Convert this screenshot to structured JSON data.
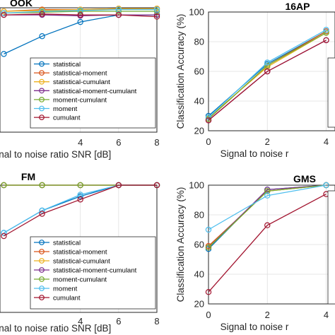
{
  "chart_data": [
    {
      "id": "ook",
      "type": "line",
      "title": "OOK",
      "xlabel": "Signal to noise ratio SNR [dB]",
      "ylabel": "",
      "x": [
        0,
        2,
        4,
        6,
        8
      ],
      "xticks": [
        4,
        6,
        8
      ],
      "xlim": [
        -0.2,
        8
      ],
      "ylim": [
        30,
        100
      ],
      "yticks": [],
      "grid": true,
      "legend_position": "bottom-right",
      "series": [
        {
          "name": "statistical",
          "color": "#0072BD",
          "values": [
            74,
            84,
            92,
            96,
            96
          ]
        },
        {
          "name": "statistical-moment",
          "color": "#D95319",
          "values": [
            98,
            99,
            99,
            99.5,
            99.5
          ]
        },
        {
          "name": "statistical-cumulant",
          "color": "#EDB120",
          "values": [
            98,
            98.5,
            99,
            99.5,
            99.5
          ]
        },
        {
          "name": "statistical-moment-cumulant",
          "color": "#7E2F8E",
          "values": [
            96,
            96,
            95.5,
            96,
            96
          ]
        },
        {
          "name": "moment-cumulant",
          "color": "#77AC30",
          "values": [
            97,
            97.5,
            98,
            98,
            98
          ]
        },
        {
          "name": "moment",
          "color": "#4DBEEE",
          "values": [
            97,
            98,
            98.5,
            99,
            99
          ]
        },
        {
          "name": "cumulant",
          "color": "#A2142F",
          "values": [
            96,
            96.5,
            96,
            96,
            95
          ]
        }
      ]
    },
    {
      "id": "apsk16",
      "type": "line",
      "title": "16AP",
      "xlabel": "Signal to noise r",
      "ylabel": "Classification Accuracy (%)",
      "x": [
        0,
        2,
        4
      ],
      "xticks": [
        0,
        2,
        4
      ],
      "xlim": [
        0,
        4.3
      ],
      "ylim": [
        20,
        100
      ],
      "yticks": [
        20,
        40,
        60,
        80,
        100
      ],
      "grid": true,
      "legend_position": "right",
      "series": [
        {
          "name": "statistical",
          "color": "#0072BD",
          "values": [
            30,
            65,
            87
          ]
        },
        {
          "name": "statistical-moment",
          "color": "#D95319",
          "values": [
            28,
            64,
            87
          ]
        },
        {
          "name": "statistical-cumulant",
          "color": "#EDB120",
          "values": [
            29,
            63,
            86
          ]
        },
        {
          "name": "statistical-moment-cumulant",
          "color": "#7E2F8E",
          "values": [
            27,
            60,
            81
          ]
        },
        {
          "name": "moment-cumulant",
          "color": "#77AC30",
          "values": [
            28,
            64,
            86
          ]
        },
        {
          "name": "moment",
          "color": "#4DBEEE",
          "values": [
            29,
            66,
            88
          ]
        },
        {
          "name": "cumulant",
          "color": "#A2142F",
          "values": [
            27,
            60,
            81
          ]
        }
      ]
    },
    {
      "id": "fm",
      "type": "line",
      "title": "FM",
      "xlabel": "Signal to noise ratio SNR [dB]",
      "ylabel": "",
      "x": [
        0,
        2,
        4,
        6,
        8
      ],
      "xticks": [
        4,
        6,
        8
      ],
      "xlim": [
        -0.2,
        8
      ],
      "ylim": [
        20,
        100
      ],
      "yticks": [],
      "grid": true,
      "legend_position": "bottom-right",
      "series": [
        {
          "name": "statistical",
          "color": "#0072BD",
          "values": [
            70,
            84,
            93,
            100,
            100
          ]
        },
        {
          "name": "statistical-moment",
          "color": "#D95319",
          "values": [
            100,
            100,
            100,
            100,
            100
          ]
        },
        {
          "name": "statistical-cumulant",
          "color": "#EDB120",
          "values": [
            100,
            100,
            100,
            100,
            100
          ]
        },
        {
          "name": "statistical-moment-cumulant",
          "color": "#7E2F8E",
          "values": [
            100,
            100,
            100,
            100,
            100
          ]
        },
        {
          "name": "moment-cumulant",
          "color": "#77AC30",
          "values": [
            100,
            100,
            100,
            100,
            100
          ]
        },
        {
          "name": "moment",
          "color": "#4DBEEE",
          "values": [
            70,
            84,
            94,
            100,
            100
          ]
        },
        {
          "name": "cumulant",
          "color": "#A2142F",
          "values": [
            68,
            82,
            91,
            100,
            100
          ]
        }
      ]
    },
    {
      "id": "gmsk",
      "type": "line",
      "title": "GMS",
      "xlabel": "Signal to noise r",
      "ylabel": "Classification Accuracy (%)",
      "x": [
        0,
        2,
        4
      ],
      "xticks": [
        0,
        2,
        4
      ],
      "xlim": [
        0,
        4.3
      ],
      "ylim": [
        20,
        100
      ],
      "yticks": [
        20,
        40,
        60,
        80,
        100
      ],
      "grid": true,
      "legend_position": "right",
      "series": [
        {
          "name": "statistical",
          "color": "#0072BD",
          "values": [
            57,
            97,
            100
          ]
        },
        {
          "name": "statistical-moment",
          "color": "#D95319",
          "values": [
            59,
            96,
            100
          ]
        },
        {
          "name": "statistical-cumulant",
          "color": "#EDB120",
          "values": [
            58,
            96,
            100
          ]
        },
        {
          "name": "statistical-moment-cumulant",
          "color": "#7E2F8E",
          "values": [
            58,
            97,
            100
          ]
        },
        {
          "name": "moment-cumulant",
          "color": "#77AC30",
          "values": [
            58,
            96,
            100
          ]
        },
        {
          "name": "moment",
          "color": "#4DBEEE",
          "values": [
            70,
            93,
            100
          ]
        },
        {
          "name": "cumulant",
          "color": "#A2142F",
          "values": [
            28,
            73,
            94
          ]
        }
      ]
    }
  ]
}
